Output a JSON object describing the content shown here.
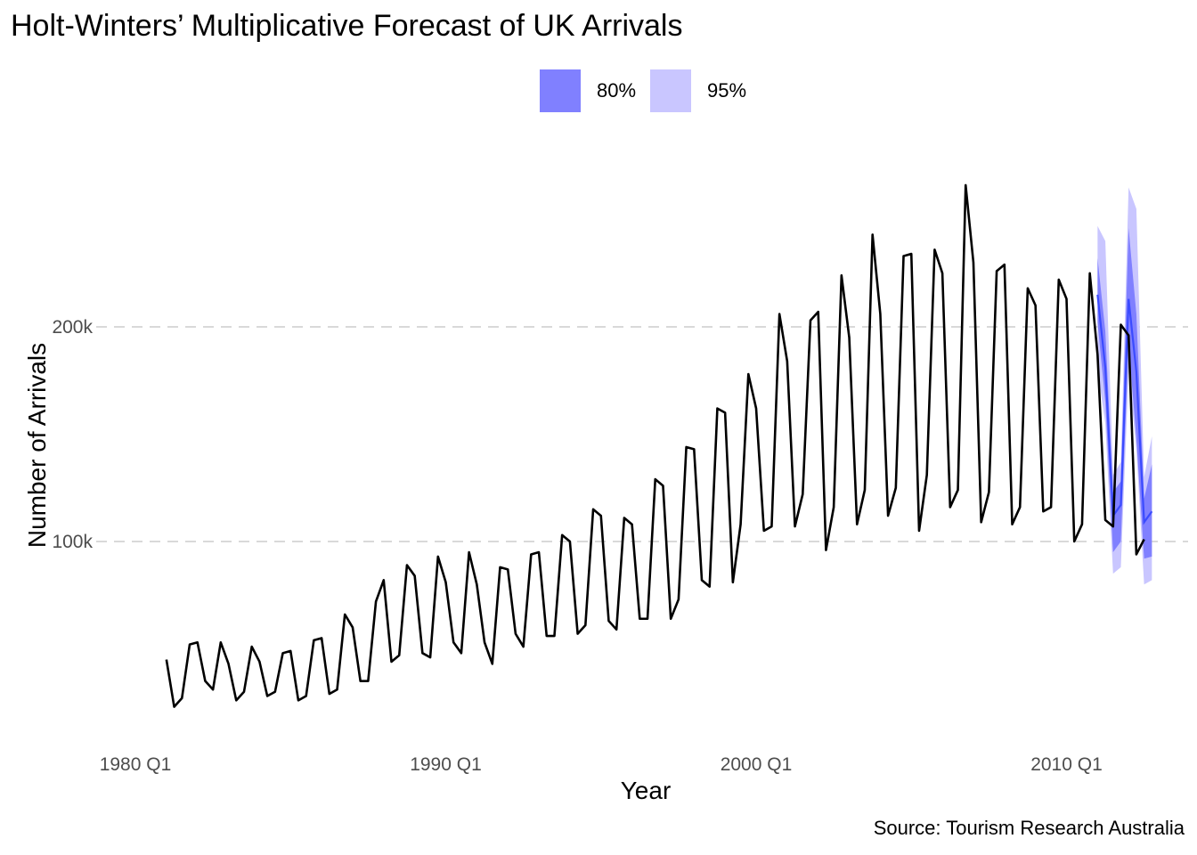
{
  "chart_data": {
    "type": "line",
    "title": "Holt-Winters’ Multiplicative Forecast of UK Arrivals",
    "xlabel": "Year",
    "ylabel": "Number of Arrivals",
    "caption": "Source: Tourism Research Australia",
    "xlim": [
      1980.0,
      2012.5
    ],
    "ylim": [
      20000,
      265000
    ],
    "x_ticks": [
      {
        "value": 1980,
        "label": "1980 Q1"
      },
      {
        "value": 1990,
        "label": "1990 Q1"
      },
      {
        "value": 2000,
        "label": "2000 Q1"
      },
      {
        "value": 2010,
        "label": "2010 Q1"
      }
    ],
    "y_ticks": [
      {
        "value": 100000,
        "label": "100k"
      },
      {
        "value": 200000,
        "label": "200k"
      }
    ],
    "grid": "horizontal dashed at y ticks",
    "legend": {
      "position": "top",
      "items": [
        {
          "label": "80%",
          "color": "#8080ff"
        },
        {
          "label": "95%",
          "color": "#c9c6ff"
        }
      ]
    },
    "series": [
      {
        "kind": "observed",
        "color": "#000000",
        "x_start": "1981 Q1",
        "x_start_value": 1981.0,
        "step_years": 0.25,
        "values": [
          45000,
          23000,
          27000,
          52000,
          53000,
          35000,
          31000,
          53000,
          43000,
          26000,
          30000,
          51000,
          44000,
          28000,
          30000,
          48000,
          49000,
          26000,
          28000,
          54000,
          55000,
          29000,
          31000,
          66000,
          60000,
          35000,
          35000,
          72000,
          82000,
          44000,
          47000,
          89000,
          84000,
          48000,
          46000,
          93000,
          81000,
          53000,
          48000,
          95000,
          80000,
          53000,
          43000,
          88000,
          87000,
          57000,
          51000,
          94000,
          95000,
          56000,
          56000,
          103000,
          100000,
          57000,
          61000,
          115000,
          112000,
          63000,
          59000,
          111000,
          108000,
          64000,
          64000,
          129000,
          126000,
          64000,
          73000,
          144000,
          143000,
          82000,
          79000,
          162000,
          160000,
          81000,
          108000,
          178000,
          162000,
          105000,
          107000,
          206000,
          184000,
          107000,
          122000,
          203000,
          207000,
          96000,
          116000,
          224000,
          195000,
          108000,
          124000,
          243000,
          206000,
          112000,
          125000,
          233000,
          234000,
          105000,
          131000,
          236000,
          225000,
          116000,
          124000,
          266000,
          230000,
          109000,
          123000,
          226000,
          229000,
          108000,
          116000,
          218000,
          210000,
          114000,
          116000,
          222000,
          213000,
          100000,
          108000,
          225000,
          187000,
          110000,
          107000,
          201000,
          196000,
          94000,
          101000
        ]
      },
      {
        "kind": "forecast",
        "color": "#3b4bff",
        "x_start": "2011 Q1",
        "x_start_value": 2011.0,
        "step_years": 0.25,
        "mean": [
          215000,
          181000,
          112000,
          117000,
          213000,
          179000,
          109000,
          114000
        ],
        "lower80": [
          202000,
          165000,
          95000,
          100000,
          192000,
          148000,
          92000,
          93000
        ],
        "upper80": [
          232000,
          198000,
          123000,
          128000,
          246000,
          206000,
          120000,
          136000
        ],
        "lower95": [
          180000,
          155000,
          85000,
          88000,
          179000,
          143000,
          80000,
          82000
        ],
        "upper95": [
          247000,
          240000,
          131000,
          137000,
          265000,
          255000,
          130000,
          149000
        ]
      }
    ]
  }
}
